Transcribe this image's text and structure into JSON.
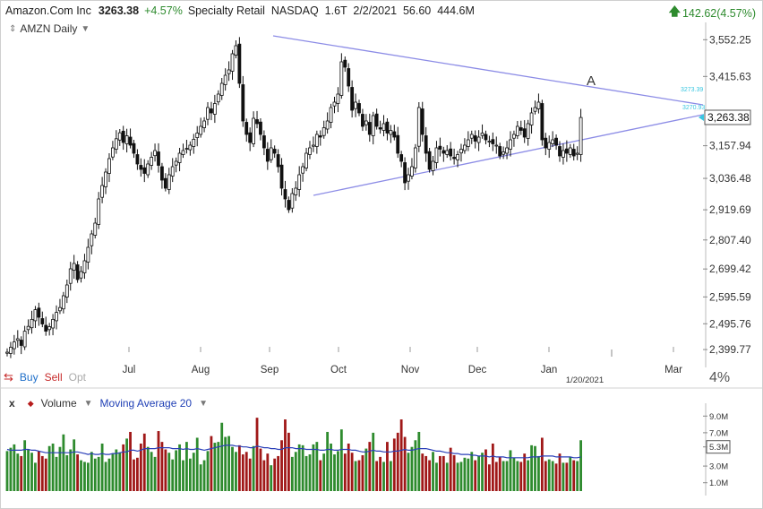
{
  "header": {
    "name": "Amazon.Com Inc",
    "price": "3263.38",
    "change_pct": "+4.57%",
    "meta": "Specialty Retail  NASDAQ  1.6T  2/2/2021  56.60  444.6M",
    "right_change": "142.62(4.57%)"
  },
  "chart_label": "AMZN Daily",
  "order": {
    "buy": "Buy",
    "sell": "Sell",
    "opt": "Opt"
  },
  "pct_label": "4%",
  "volume_panel": {
    "close": "x",
    "label": "Volume",
    "ma_label": "Moving Average 20"
  },
  "annotation": {
    "label": "A",
    "date": "1/20/2021"
  },
  "price_tags": {
    "last": "3,263.38",
    "line_top": "3273.39",
    "line_bottom": "3270.93"
  },
  "colors": {
    "up": "#2e8b2e",
    "down": "#a01818",
    "trend": "#8c8ce6",
    "ma": "#2a3fb8",
    "candle": "#111111",
    "tag": "#38c6e0"
  },
  "chart_data": {
    "type": "candlestick",
    "y_ticks": [
      "3,552.25",
      "3,415.63",
      "3,157.94",
      "3,036.48",
      "2,919.69",
      "2,807.40",
      "2,699.42",
      "2,595.59",
      "2,495.76",
      "2,399.77"
    ],
    "x_ticks": [
      "Jul",
      "Aug",
      "Sep",
      "Oct",
      "Nov",
      "Dec",
      "Jan",
      "Mar"
    ],
    "volume_ticks": [
      "9.0M",
      "7.0M",
      "5.3M",
      "3.0M",
      "1.0M"
    ],
    "ylim": [
      2350,
      3600
    ],
    "volume_ylim": [
      0,
      10
    ],
    "trendlines": [
      {
        "name": "upper",
        "from": [
          "2020-09-02",
          3552
        ],
        "to": [
          "2021-02-12",
          3245
        ]
      },
      {
        "name": "lower",
        "from": [
          "2020-09-21",
          2880
        ],
        "to": [
          "2021-02-12",
          3240
        ]
      }
    ],
    "closes": [
      2390,
      2408,
      2428,
      2440,
      2415,
      2468,
      2486,
      2512,
      2548,
      2520,
      2495,
      2468,
      2485,
      2512,
      2538,
      2556,
      2600,
      2640,
      2700,
      2720,
      2660,
      2690,
      2730,
      2780,
      2830,
      2870,
      2960,
      3010,
      3060,
      3110,
      3150,
      3184,
      3206,
      3170,
      3195,
      3160,
      3130,
      3090,
      3070,
      3055,
      3090,
      3115,
      3140,
      3085,
      3030,
      3000,
      3050,
      3080,
      3100,
      3130,
      3140,
      3148,
      3160,
      3182,
      3205,
      3230,
      3250,
      3300,
      3280,
      3315,
      3350,
      3390,
      3420,
      3440,
      3500,
      3530,
      3390,
      3250,
      3200,
      3170,
      3260,
      3240,
      3200,
      3150,
      3100,
      3150,
      3130,
      3080,
      3000,
      2960,
      2920,
      2980,
      3000,
      3050,
      3080,
      3130,
      3150,
      3160,
      3200,
      3190,
      3225,
      3250,
      3300,
      3320,
      3350,
      3470,
      3450,
      3380,
      3290,
      3320,
      3280,
      3230,
      3250,
      3200,
      3270,
      3230,
      3220,
      3240,
      3205,
      3215,
      3190,
      3130,
      3100,
      3020,
      3050,
      3080,
      3150,
      3300,
      3200,
      3130,
      3070,
      3100,
      3150,
      3145,
      3130,
      3140,
      3120,
      3110,
      3125,
      3145,
      3160,
      3180,
      3200,
      3175,
      3190,
      3205,
      3180,
      3175,
      3165,
      3160,
      3120,
      3135,
      3150,
      3180,
      3200,
      3230,
      3215,
      3190,
      3240,
      3280,
      3300,
      3320,
      3180,
      3150,
      3170,
      3180,
      3160,
      3120,
      3140,
      3130,
      3150,
      3120,
      3130,
      3263
    ],
    "volumes": [
      4.8,
      5.2,
      5.6,
      4.5,
      4.2,
      6.1,
      5.0,
      4.6,
      3.4,
      4.8,
      4.2,
      3.9,
      5.4,
      5.7,
      4.1,
      5.3,
      6.8,
      4.3,
      5.0,
      6.2,
      4.4,
      3.7,
      3.5,
      3.4,
      4.7,
      3.9,
      4.1,
      5.7,
      3.5,
      3.9,
      4.5,
      5.0,
      4.6,
      5.6,
      6.3,
      7.1,
      3.8,
      4.0,
      5.7,
      6.9,
      5.3,
      4.7,
      4.1,
      7.2,
      5.9,
      5.0,
      4.6,
      3.8,
      4.9,
      5.6,
      3.7,
      5.9,
      3.9,
      4.6,
      6.4,
      3.2,
      3.7,
      4.8,
      6.6,
      5.8,
      5.9,
      8.2,
      6.5,
      6.6,
      5.3,
      4.7,
      5.5,
      4.4,
      4.7,
      3.9,
      5.4,
      8.8,
      5.1,
      3.7,
      4.5,
      3.1,
      3.9,
      4.2,
      6.1,
      8.6,
      7.0,
      4.1,
      4.7,
      5.6,
      5.5,
      4.2,
      4.4,
      5.6,
      5.9,
      3.7,
      4.5,
      7.1,
      5.7,
      4.4,
      4.8,
      7.4,
      4.5,
      5.7,
      4.6,
      3.6,
      3.7,
      4.3,
      5.1,
      5.9,
      7.0,
      3.6,
      4.1,
      3.5,
      5.9,
      3.6,
      6.3,
      7.0,
      8.6,
      6.5,
      4.6,
      5.3,
      6.1,
      7.1,
      4.5,
      4.2,
      3.7,
      4.7,
      3.4,
      4.2,
      4.2,
      3.4,
      5.2,
      4.3,
      3.4,
      3.5,
      4.0,
      3.9,
      4.7,
      3.7,
      4.2,
      4.6,
      5.0,
      3.2,
      5.7,
      3.5,
      4.1,
      3.6,
      3.6,
      4.9,
      4.0,
      3.6,
      3.5,
      4.5,
      3.7,
      5.5,
      5.4,
      4.2,
      6.4,
      3.6,
      3.8,
      3.6,
      3.3,
      4.5,
      3.4,
      3.4,
      4.1,
      3.7,
      3.6,
      6.1
    ],
    "ma20": [
      5.0,
      4.9,
      4.9,
      4.9,
      4.9,
      5.0,
      5.0,
      4.9,
      4.9,
      4.8,
      4.7,
      4.6,
      4.6,
      4.6,
      4.6,
      4.6,
      4.6,
      4.6,
      4.6,
      4.7,
      4.7,
      4.6,
      4.5,
      4.4,
      4.5,
      4.4,
      4.4,
      4.5,
      4.4,
      4.4,
      4.5,
      4.5,
      4.6,
      4.7,
      4.7,
      4.9,
      4.9,
      4.8,
      4.9,
      5.1,
      5.1,
      5.1,
      5.1,
      5.2,
      5.2,
      5.2,
      5.2,
      5.1,
      5.1,
      5.1,
      5.0,
      5.1,
      5.0,
      5.0,
      5.1,
      5.0,
      4.9,
      5.0,
      5.1,
      5.2,
      5.3,
      5.4,
      5.5,
      5.5,
      5.5,
      5.4,
      5.4,
      5.3,
      5.3,
      5.2,
      5.2,
      5.4,
      5.3,
      5.2,
      5.2,
      5.1,
      5.1,
      5.0,
      5.0,
      5.2,
      5.2,
      5.2,
      5.1,
      5.1,
      5.1,
      5.0,
      5.0,
      5.0,
      5.0,
      4.9,
      4.9,
      5.0,
      5.0,
      4.9,
      4.9,
      5.0,
      5.0,
      5.0,
      4.9,
      4.9,
      4.8,
      4.7,
      4.7,
      4.8,
      4.9,
      4.8,
      4.8,
      4.7,
      4.7,
      4.7,
      4.8,
      4.8,
      4.9,
      5.0,
      4.9,
      4.9,
      5.0,
      5.1,
      5.1,
      5.1,
      5.0,
      4.9,
      4.8,
      4.8,
      4.7,
      4.6,
      4.6,
      4.5,
      4.5,
      4.4,
      4.4,
      4.4,
      4.3,
      4.3,
      4.2,
      4.2,
      4.2,
      4.1,
      4.2,
      4.1,
      4.1,
      4.1,
      4.0,
      4.0,
      4.0,
      4.0,
      4.0,
      4.0,
      4.0,
      4.1,
      4.1,
      4.1,
      4.2,
      4.2,
      4.2,
      4.2,
      4.1,
      4.1,
      4.1,
      4.1,
      4.1,
      4.0,
      4.0,
      4.1
    ]
  }
}
